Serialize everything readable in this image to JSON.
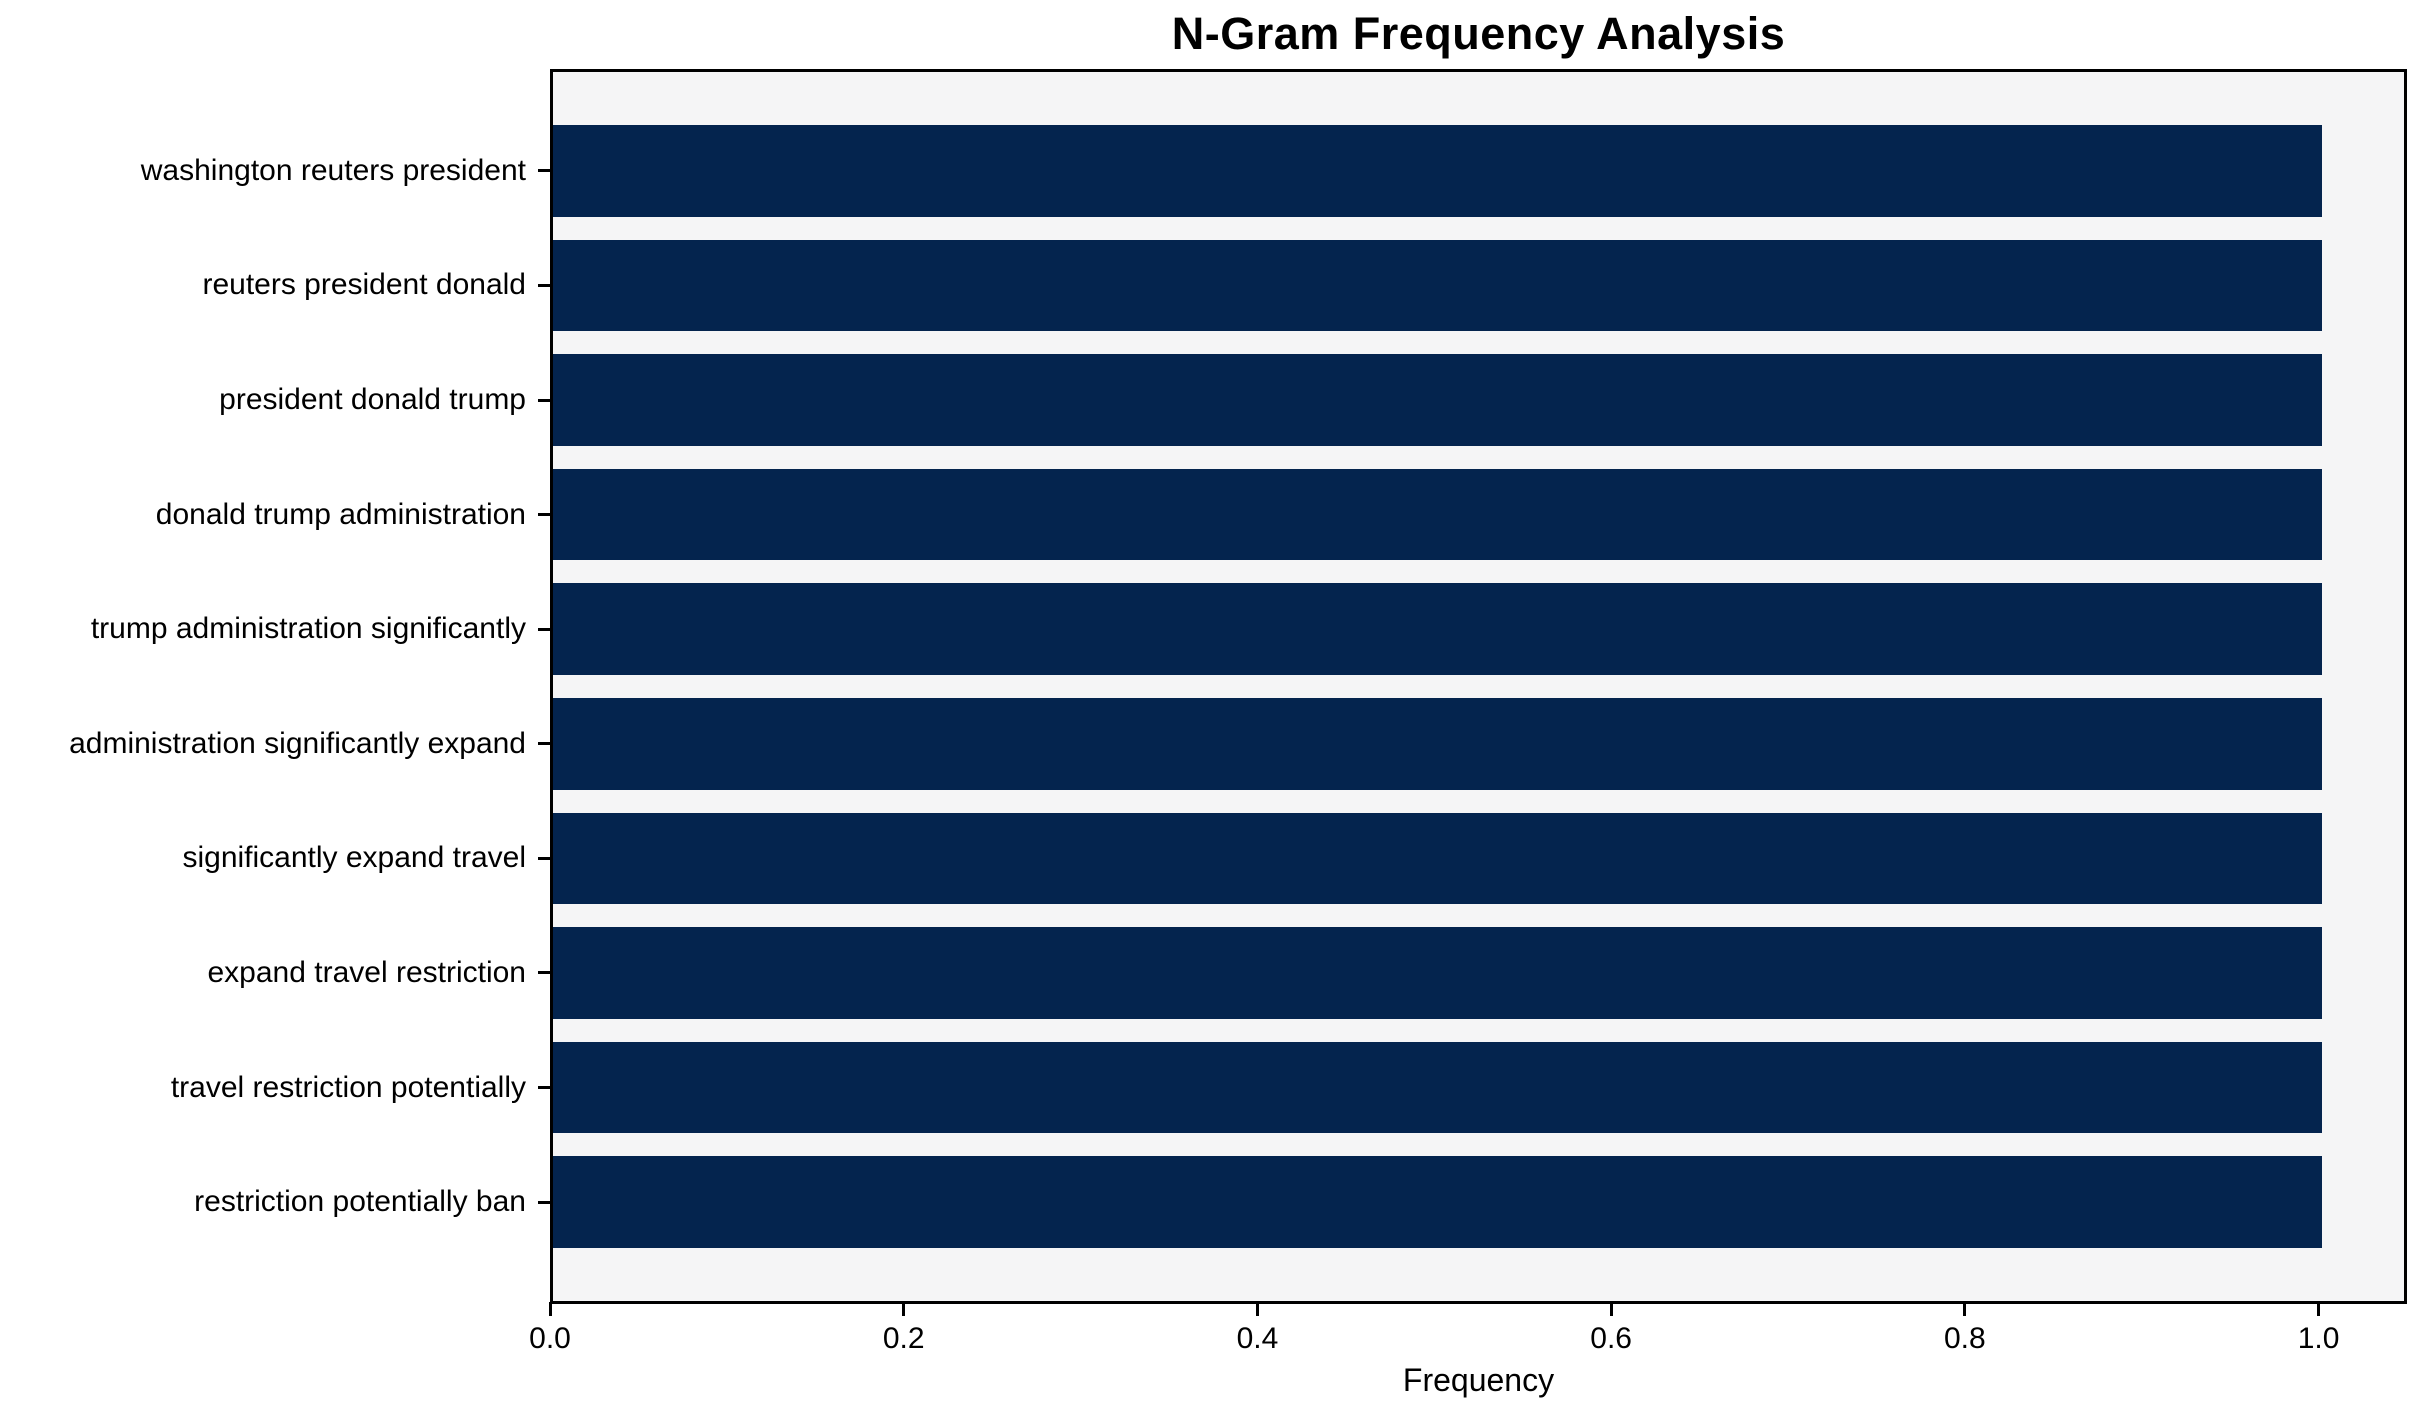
{
  "chart_data": {
    "type": "bar",
    "orientation": "horizontal",
    "title": "N-Gram Frequency Analysis",
    "xlabel": "Frequency",
    "ylabel": "",
    "categories": [
      "washington reuters president",
      "reuters president donald",
      "president donald trump",
      "donald trump administration",
      "trump administration significantly",
      "administration significantly expand",
      "significantly expand travel",
      "expand travel restriction",
      "travel restriction potentially",
      "restriction potentially ban"
    ],
    "values": [
      1.0,
      1.0,
      1.0,
      1.0,
      1.0,
      1.0,
      1.0,
      1.0,
      1.0,
      1.0
    ],
    "xlim": [
      0,
      1.05
    ],
    "xticks": [
      "0.0",
      "0.2",
      "0.4",
      "0.6",
      "0.8",
      "1.0"
    ],
    "xtick_values": [
      0.0,
      0.2,
      0.4,
      0.6,
      0.8,
      1.0
    ],
    "grid": false,
    "legend": null,
    "colors": {
      "bar": "#04244e",
      "plot_bg": "#f5f5f6",
      "figure_bg": "#ffffff",
      "axis": "#000000",
      "text": "#000000"
    }
  }
}
